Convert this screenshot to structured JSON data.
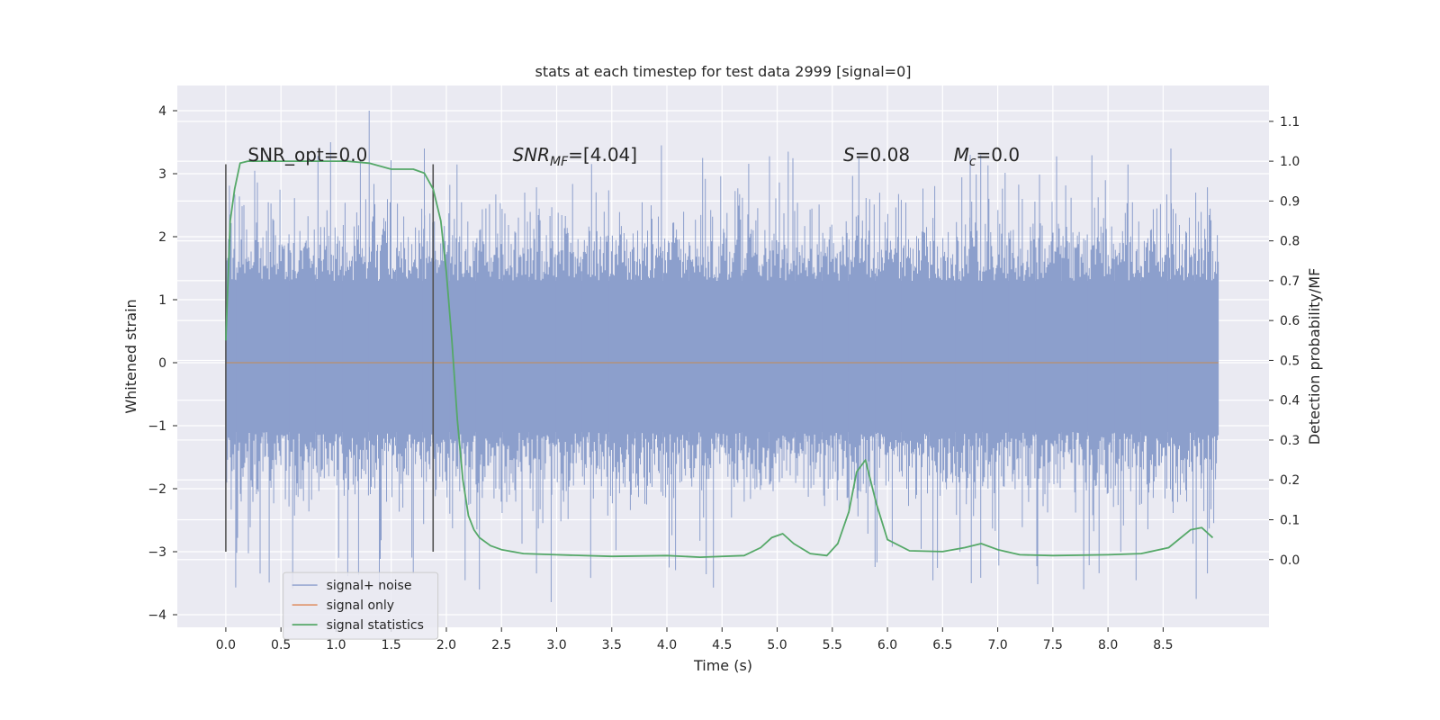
{
  "chart_data": {
    "type": "line",
    "title": "stats at each timestep for test data 2999 [signal=0]",
    "xlabel": "Time (s)",
    "ylabel_left": "Whitened strain",
    "ylabel_right": "Detection probability/MF",
    "xlim": [
      -0.44,
      9.46
    ],
    "ylim_left": [
      -4.2,
      4.4
    ],
    "ylim_right": [
      -0.17,
      1.19
    ],
    "x_ticks": [
      0.0,
      0.5,
      1.0,
      1.5,
      2.0,
      2.5,
      3.0,
      3.5,
      4.0,
      4.5,
      5.0,
      5.5,
      6.0,
      6.5,
      7.0,
      7.5,
      8.0,
      8.5
    ],
    "x_tick_labels": [
      "0.0",
      "0.5",
      "1.0",
      "1.5",
      "2.0",
      "2.5",
      "3.0",
      "3.5",
      "4.0",
      "4.5",
      "5.0",
      "5.5",
      "6.0",
      "6.5",
      "7.0",
      "7.5",
      "8.0",
      "8.5"
    ],
    "y_left_ticks": [
      -4,
      -3,
      -2,
      -1,
      0,
      1,
      2,
      3,
      4
    ],
    "y_left_tick_labels": [
      "−4",
      "−3",
      "−2",
      "−1",
      "0",
      "1",
      "2",
      "3",
      "4"
    ],
    "y_right_ticks": [
      0.0,
      0.1,
      0.2,
      0.3,
      0.4,
      0.5,
      0.6,
      0.7,
      0.8,
      0.9,
      1.0,
      1.1
    ],
    "y_right_tick_labels": [
      "0.0",
      "0.1",
      "0.2",
      "0.3",
      "0.4",
      "0.5",
      "0.6",
      "0.7",
      "0.8",
      "0.9",
      "1.0",
      "1.1"
    ],
    "window_markers": {
      "x": [
        0.0,
        1.88
      ],
      "ymin": -3.0,
      "ymax": 3.15
    },
    "noise_envelope": {
      "duration_s": 9.0,
      "core_band": [
        -1.1,
        1.3
      ],
      "typical_peak": 3.0,
      "extreme_max": 4.0,
      "extreme_min": -3.8
    },
    "series": [
      {
        "name": "signal+ noise",
        "color": "#8c9fcc",
        "kind": "noise"
      },
      {
        "name": "signal only",
        "color": "#dd8452",
        "values_flat": 0.0,
        "x_range": [
          0.0,
          9.0
        ]
      },
      {
        "name": "signal statistics",
        "color": "#55a868",
        "x": [
          0.0,
          0.04,
          0.08,
          0.13,
          0.2,
          0.3,
          0.5,
          0.8,
          1.1,
          1.3,
          1.5,
          1.7,
          1.8,
          1.88,
          1.95,
          2.0,
          2.05,
          2.1,
          2.15,
          2.2,
          2.25,
          2.3,
          2.4,
          2.5,
          2.7,
          3.0,
          3.5,
          4.0,
          4.3,
          4.7,
          4.85,
          4.95,
          5.05,
          5.15,
          5.3,
          5.45,
          5.55,
          5.65,
          5.72,
          5.8,
          5.9,
          6.0,
          6.2,
          6.5,
          6.7,
          6.85,
          7.0,
          7.2,
          7.5,
          8.0,
          8.3,
          8.55,
          8.75,
          8.85,
          8.95
        ],
        "y": [
          0.55,
          0.85,
          0.93,
          0.995,
          1.0,
          1.0,
          1.0,
          1.0,
          1.0,
          0.995,
          0.98,
          0.98,
          0.97,
          0.93,
          0.85,
          0.72,
          0.55,
          0.35,
          0.2,
          0.11,
          0.075,
          0.055,
          0.035,
          0.025,
          0.015,
          0.012,
          0.008,
          0.01,
          0.006,
          0.01,
          0.03,
          0.055,
          0.065,
          0.04,
          0.015,
          0.01,
          0.04,
          0.12,
          0.22,
          0.25,
          0.14,
          0.05,
          0.022,
          0.02,
          0.03,
          0.04,
          0.025,
          0.012,
          0.01,
          0.012,
          0.015,
          0.03,
          0.075,
          0.08,
          0.055
        ]
      }
    ],
    "annotations": [
      {
        "x": 0.2,
        "y": 3.2,
        "text": "SNR_opt=0.0",
        "style": "plain"
      },
      {
        "x": 2.6,
        "y": 3.2,
        "main": "SNR",
        "sub": "MF",
        "rest": "=[4.04]",
        "style": "math"
      },
      {
        "x": 5.6,
        "y": 3.2,
        "main": "S",
        "sub": "",
        "rest": "=0.08",
        "style": "math"
      },
      {
        "x": 6.6,
        "y": 3.2,
        "main": "M",
        "sub": "c",
        "rest": "=0.0",
        "style": "math"
      }
    ],
    "legend": {
      "placement": "lower-left",
      "entries": [
        {
          "label": "signal+ noise",
          "color": "#8c9fcc"
        },
        {
          "label": "signal only",
          "color": "#dd8452"
        },
        {
          "label": "signal statistics",
          "color": "#55a868"
        }
      ]
    },
    "grid": true
  }
}
